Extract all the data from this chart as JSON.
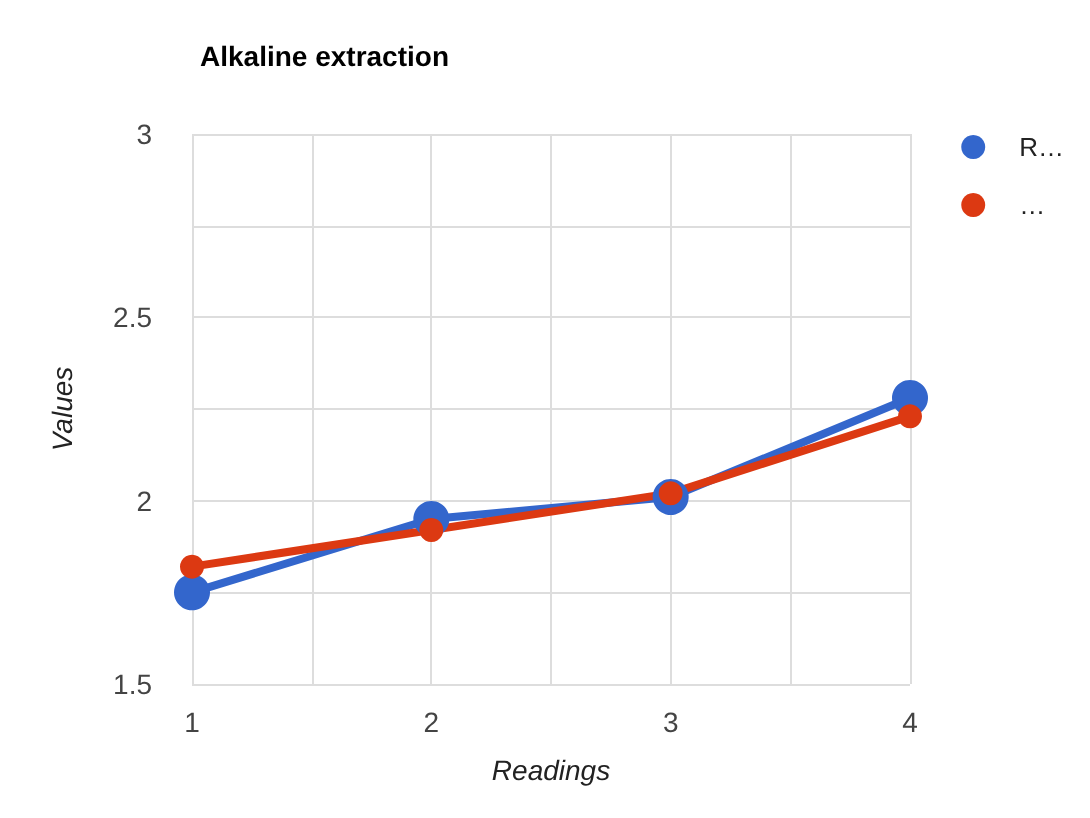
{
  "chart_data": {
    "type": "line",
    "title": "Alkaline extraction",
    "xlabel": "Readings",
    "ylabel": "Values",
    "x": [
      1,
      2,
      3,
      4
    ],
    "series": [
      {
        "name": "R…",
        "color": "#3366cc",
        "values": [
          1.75,
          1.95,
          2.01,
          2.28
        ]
      },
      {
        "name": "…",
        "color": "#dc3912",
        "values": [
          1.82,
          1.92,
          2.02,
          2.23
        ]
      }
    ],
    "xlim": [
      1,
      4
    ],
    "xticks": [
      1,
      {
        "value": 1.5,
        "label": null
      },
      2,
      {
        "value": 2.5,
        "label": null
      },
      3,
      {
        "value": 3.5,
        "label": null
      },
      4
    ],
    "ylim": [
      1.5,
      3
    ],
    "yticks": [
      1.5,
      {
        "value": 1.75,
        "label": null
      },
      2,
      {
        "value": 2.25,
        "label": null
      },
      2.5,
      {
        "value": 2.75,
        "label": null
      },
      3
    ],
    "grid": true,
    "legend": "top right",
    "marker": "circle",
    "line_style": "solid"
  }
}
